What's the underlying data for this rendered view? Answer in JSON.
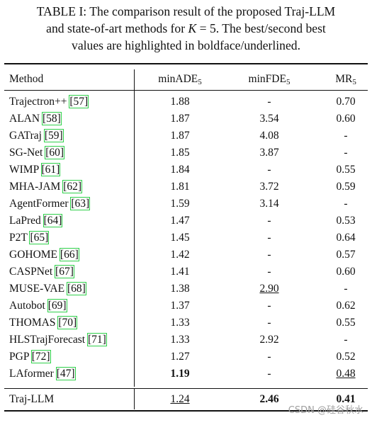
{
  "caption": {
    "line1": "TABLE I: The comparison result of the proposed Traj-LLM",
    "line2_pre": "and state-of-art methods for ",
    "line2_var": "K",
    "line2_post": " = 5. The best/second best",
    "line3": "values are highlighted in boldface/underlined."
  },
  "headers": {
    "method": "Method",
    "ade": "minADE",
    "ade_sub": "5",
    "fde": "minFDE",
    "fde_sub": "5",
    "mr": "MR",
    "mr_sub": "5"
  },
  "rows": [
    {
      "name": "Trajectron++",
      "ref": "[57]",
      "ade": "1.88",
      "fde": "-",
      "mr": "0.70"
    },
    {
      "name": "ALAN",
      "ref": "[58]",
      "ade": "1.87",
      "fde": "3.54",
      "mr": "0.60"
    },
    {
      "name": "GATraj",
      "ref": "[59]",
      "ade": "1.87",
      "fde": "4.08",
      "mr": "-"
    },
    {
      "name": "SG-Net",
      "ref": "[60]",
      "ade": "1.85",
      "fde": "3.87",
      "mr": "-"
    },
    {
      "name": "WIMP",
      "ref": "[61]",
      "ade": "1.84",
      "fde": "-",
      "mr": "0.55"
    },
    {
      "name": "MHA-JAM",
      "ref": "[62]",
      "ade": "1.81",
      "fde": "3.72",
      "mr": "0.59"
    },
    {
      "name": "AgentFormer",
      "ref": "[63]",
      "ade": "1.59",
      "fde": "3.14",
      "mr": "-"
    },
    {
      "name": "LaPred",
      "ref": "[64]",
      "ade": "1.47",
      "fde": "-",
      "mr": "0.53"
    },
    {
      "name": "P2T",
      "ref": "[65]",
      "ade": "1.45",
      "fde": "-",
      "mr": "0.64"
    },
    {
      "name": "GOHOME",
      "ref": "[66]",
      "ade": "1.42",
      "fde": "-",
      "mr": "0.57"
    },
    {
      "name": "CASPNet",
      "ref": "[67]",
      "ade": "1.41",
      "fde": "-",
      "mr": "0.60"
    },
    {
      "name": "MUSE-VAE",
      "ref": "[68]",
      "ade": "1.38",
      "fde": "2.90",
      "mr": "-",
      "fde_style": "ul"
    },
    {
      "name": "Autobot",
      "ref": "[69]",
      "ade": "1.37",
      "fde": "-",
      "mr": "0.62"
    },
    {
      "name": "THOMAS",
      "ref": "[70]",
      "ade": "1.33",
      "fde": "-",
      "mr": "0.55"
    },
    {
      "name": "HLSTrajForecast",
      "ref": "[71]",
      "ade": "1.33",
      "fde": "2.92",
      "mr": "-"
    },
    {
      "name": "PGP",
      "ref": "[72]",
      "ade": "1.27",
      "fde": "-",
      "mr": "0.52"
    },
    {
      "name": "LAformer",
      "ref": "[47]",
      "ade": "1.19",
      "fde": "-",
      "mr": "0.48",
      "ade_style": "bold",
      "mr_style": "ul"
    }
  ],
  "final_row": {
    "name": "Traj-LLM",
    "ade": "1.24",
    "fde": "2.46",
    "mr": "0.41",
    "ade_style": "ul",
    "fde_style": "bold",
    "mr_style": "bold"
  },
  "watermark": "CSDN @硅谷秋水"
}
